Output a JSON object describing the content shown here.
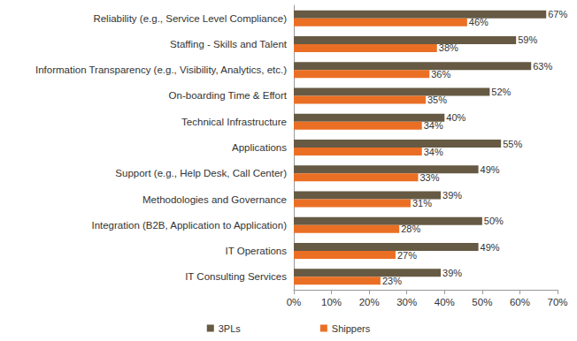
{
  "chart_data": {
    "type": "bar",
    "orientation": "horizontal",
    "categories": [
      "Reliability (e.g., Service Level Compliance)",
      "Staffing - Skills and Talent",
      "Information Transparency (e.g., Visibility, Analytics, etc.)",
      "On-boarding Time & Effort",
      "Technical Infrastructure",
      "Applications",
      "Support (e.g., Help Desk, Call Center)",
      "Methodologies and Governance",
      "Integration (B2B, Application to Application)",
      "IT Operations",
      "IT Consulting Services"
    ],
    "series": [
      {
        "name": "3PLs",
        "color": "#665a44",
        "values": [
          67,
          59,
          63,
          52,
          40,
          55,
          49,
          39,
          50,
          49,
          39
        ],
        "value_labels": [
          "67%",
          "59%",
          "63%",
          "52%",
          "40%",
          "55%",
          "49%",
          "39%",
          "50%",
          "49%",
          "39%"
        ]
      },
      {
        "name": "Shippers",
        "color": "#ea6f25",
        "values": [
          46,
          38,
          36,
          35,
          34,
          34,
          33,
          31,
          28,
          27,
          23
        ],
        "value_labels": [
          "46%",
          "38%",
          "36%",
          "35%",
          "34%",
          "34%",
          "33%",
          "31%",
          "28%",
          "27%",
          "23%"
        ]
      }
    ],
    "xlim": [
      0,
      70
    ],
    "xticks": [
      {
        "value": 0,
        "label": "0%"
      },
      {
        "value": 10,
        "label": "10%"
      },
      {
        "value": 20,
        "label": "20%"
      },
      {
        "value": 30,
        "label": "30%"
      },
      {
        "value": 40,
        "label": "40%"
      },
      {
        "value": 50,
        "label": "50%"
      },
      {
        "value": 60,
        "label": "60%"
      },
      {
        "value": 70,
        "label": "70%"
      }
    ],
    "grid": false,
    "legend": "bottom",
    "data_labels": true
  }
}
